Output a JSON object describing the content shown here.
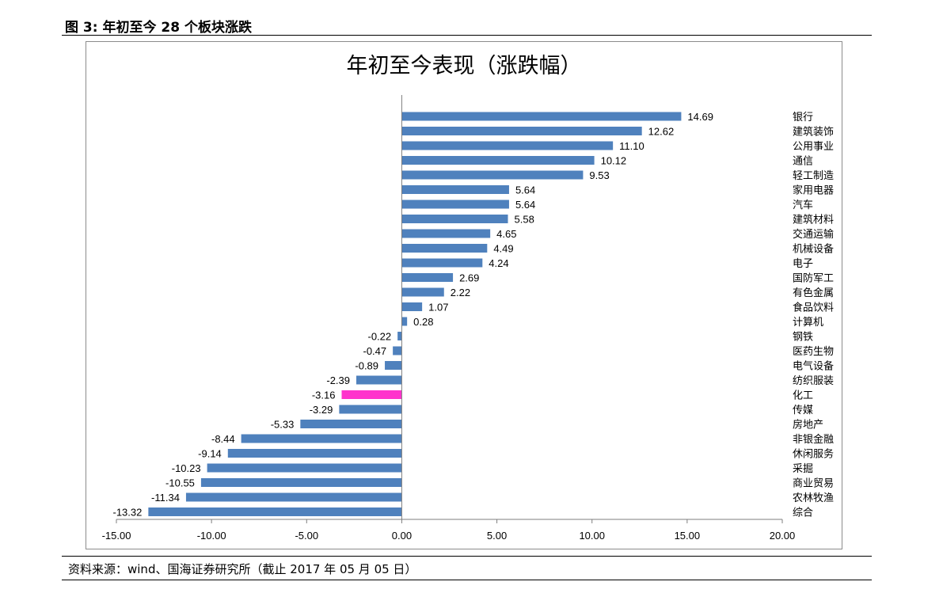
{
  "figure_caption": "图 3:  年初至今 28 个板块涨跌",
  "source_note": "资料来源：wind、国海证券研究所（截止 2017 年 05 月 05 日）",
  "colors": {
    "bar": "#4f81bd",
    "highlight": "#ff33cc",
    "axis": "#7f7f7f"
  },
  "chart_data": {
    "type": "bar",
    "orientation": "horizontal",
    "title": "年初至今表现（涨跌幅）",
    "xlabel": "",
    "ylabel": "",
    "xlim": [
      -15,
      20
    ],
    "x_ticks": [
      "-15.00",
      "-10.00",
      "-5.00",
      "0.00",
      "5.00",
      "10.00",
      "15.00",
      "20.00"
    ],
    "grid": false,
    "legend": "none",
    "categories": [
      "银行",
      "建筑装饰",
      "公用事业",
      "通信",
      "轻工制造",
      "家用电器",
      "汽车",
      "建筑材料",
      "交通运输",
      "机械设备",
      "电子",
      "国防军工",
      "有色金属",
      "食品饮料",
      "计算机",
      "钢铁",
      "医药生物",
      "电气设备",
      "纺织服装",
      "化工",
      "传媒",
      "房地产",
      "非银金融",
      "休闲服务",
      "采掘",
      "商业贸易",
      "农林牧渔",
      "综合"
    ],
    "values": [
      14.69,
      12.62,
      11.1,
      10.12,
      9.53,
      5.64,
      5.64,
      5.58,
      4.65,
      4.49,
      4.24,
      2.69,
      2.22,
      1.07,
      0.28,
      -0.22,
      -0.47,
      -0.89,
      -2.39,
      -3.16,
      -3.29,
      -5.33,
      -8.44,
      -9.14,
      -10.23,
      -10.55,
      -11.34,
      -13.32
    ],
    "value_labels": [
      "14.69",
      "12.62",
      "11.10",
      "10.12",
      "9.53",
      "5.64",
      "5.64",
      "5.58",
      "4.65",
      "4.49",
      "4.24",
      "2.69",
      "2.22",
      "1.07",
      "0.28",
      "-0.22",
      "-0.47",
      "-0.89",
      "-2.39",
      "-3.16",
      "-3.29",
      "-5.33",
      "-8.44",
      "-9.14",
      "-10.23",
      "-10.55",
      "-11.34",
      "-13.32"
    ],
    "highlight_category": "化工"
  }
}
